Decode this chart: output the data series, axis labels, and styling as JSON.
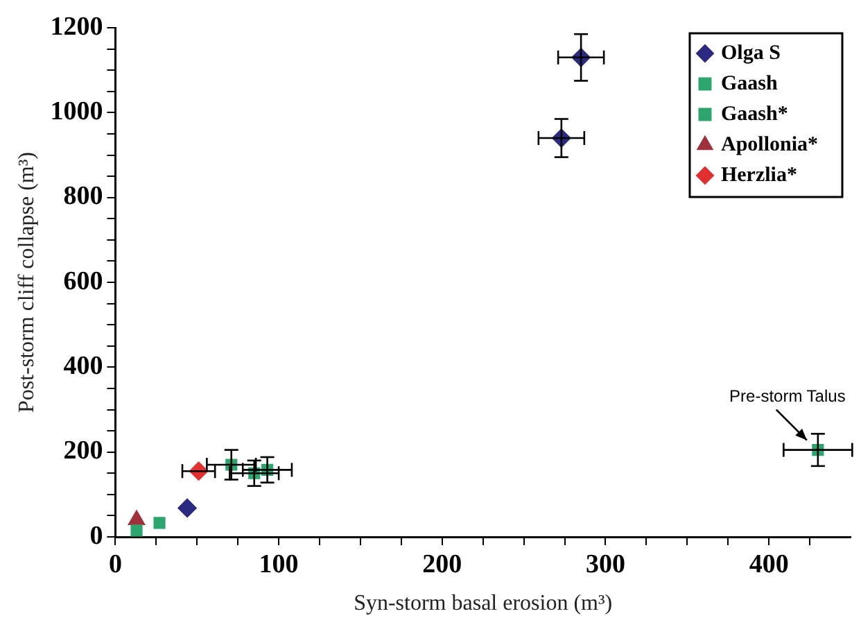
{
  "chart_data": {
    "type": "scatter",
    "xlabel": "Syn-storm basal erosion (m³)",
    "ylabel": "Post-storm cliff collapse (m³)",
    "xlim": [
      0,
      450
    ],
    "ylim": [
      0,
      1200
    ],
    "xticks": [
      0,
      {
        "value": 25,
        "label": null
      },
      {
        "value": 50,
        "label": null
      },
      {
        "value": 75,
        "label": null
      },
      100,
      {
        "value": 125,
        "label": null
      },
      {
        "value": 150,
        "label": null
      },
      {
        "value": 175,
        "label": null
      },
      200,
      {
        "value": 225,
        "label": null
      },
      {
        "value": 250,
        "label": null
      },
      {
        "value": 275,
        "label": null
      },
      300,
      {
        "value": 325,
        "label": null
      },
      {
        "value": 350,
        "label": null
      },
      {
        "value": 375,
        "label": null
      },
      400,
      {
        "value": 425,
        "label": null
      }
    ],
    "yticks": [
      0,
      {
        "value": 50,
        "label": null
      },
      {
        "value": 100,
        "label": null
      },
      {
        "value": 150,
        "label": null
      },
      200,
      {
        "value": 250,
        "label": null
      },
      {
        "value": 300,
        "label": null
      },
      {
        "value": 350,
        "label": null
      },
      400,
      {
        "value": 450,
        "label": null
      },
      {
        "value": 500,
        "label": null
      },
      {
        "value": 550,
        "label": null
      },
      600,
      {
        "value": 650,
        "label": null
      },
      {
        "value": 700,
        "label": null
      },
      {
        "value": 750,
        "label": null
      },
      800,
      {
        "value": 850,
        "label": null
      },
      {
        "value": 900,
        "label": null
      },
      {
        "value": 950,
        "label": null
      },
      1000,
      {
        "value": 1050,
        "label": null
      },
      {
        "value": 1100,
        "label": null
      },
      {
        "value": 1150,
        "label": null
      },
      1200
    ],
    "grid": false,
    "legend": "top right",
    "series": [
      {
        "name": "Olga S",
        "color": "#2b2a80",
        "marker": "diamond",
        "x": [
          285,
          273,
          44
        ],
        "values": [
          1130,
          940,
          68
        ],
        "errors": [
          55,
          45,
          null
        ],
        "xerrors": [
          14,
          14,
          null
        ]
      },
      {
        "name": "Gaash",
        "color": "#2ca56e",
        "marker": "square",
        "x": [
          430,
          93,
          27,
          13
        ],
        "values": [
          205,
          158,
          33,
          15
        ],
        "errors": [
          38,
          30,
          null,
          null
        ],
        "xerrors": [
          21,
          15,
          null,
          null
        ]
      },
      {
        "name": "Gaash*",
        "color": "#2ca56e",
        "marker": "square",
        "x": [
          71,
          85
        ],
        "values": [
          170,
          150
        ],
        "errors": [
          35,
          30
        ],
        "xerrors": [
          15,
          15
        ]
      },
      {
        "name": "Apollonia*",
        "color": "#a0303a",
        "marker": "triangle",
        "x": [
          13
        ],
        "values": [
          40
        ],
        "errors": [
          null
        ],
        "xerrors": [
          null
        ]
      },
      {
        "name": "Herzlia*",
        "color": "#e03030",
        "marker": "diamond",
        "x": [
          51
        ],
        "values": [
          155
        ],
        "errors": [
          null
        ],
        "xerrors": [
          10
        ]
      }
    ],
    "annotations": [
      {
        "text": "Pre-storm Talus",
        "x": 430,
        "y": 205
      }
    ]
  }
}
